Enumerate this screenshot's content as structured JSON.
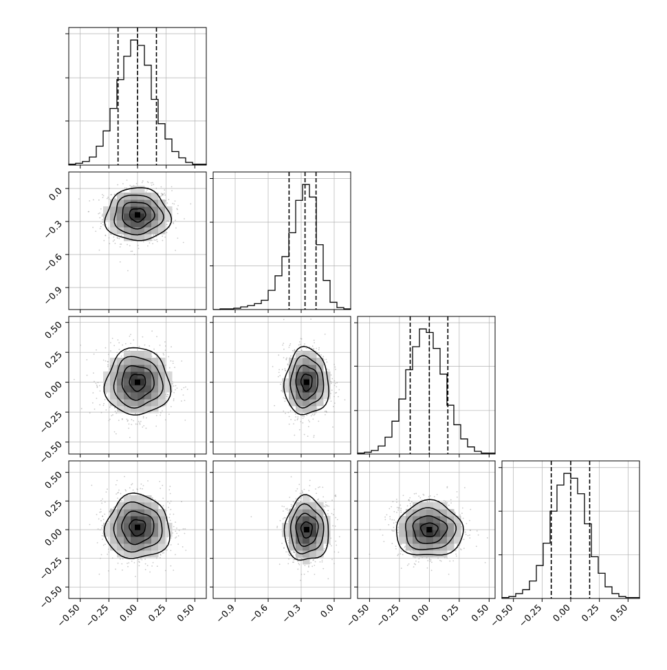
{
  "chart_data": {
    "type": "corner",
    "description": "",
    "parameters": [
      "",
      "",
      "",
      ""
    ],
    "ranges": [
      [
        -0.6,
        0.6
      ],
      [
        -1.1,
        0.15
      ],
      [
        -0.6,
        0.55
      ],
      [
        -0.6,
        0.6
      ]
    ],
    "ticks": [
      [
        -0.5,
        -0.25,
        0.0,
        0.25,
        0.5
      ],
      [
        -0.9,
        -0.6,
        -0.3,
        0.0
      ],
      [
        -0.5,
        -0.25,
        0.0,
        0.25,
        0.5
      ],
      [
        -0.5,
        -0.25,
        0.0,
        0.25,
        0.5
      ]
    ],
    "tick_labels": [
      [
        "−0.50",
        "−0.25",
        "0.00",
        "0.25",
        "0.50"
      ],
      [
        "−0.9",
        "−0.6",
        "−0.3",
        "0.0"
      ],
      [
        "−0.50",
        "−0.25",
        "0.00",
        "0.25",
        "0.50"
      ],
      [
        "−0.50",
        "−0.25",
        "0.00",
        "0.25",
        "0.50"
      ]
    ],
    "histograms": [
      {
        "param": 0,
        "bin_edges_range": [
          -0.6,
          0.6
        ],
        "n_bins": 20,
        "counts": [
          1,
          2,
          4,
          9,
          21,
          38,
          63,
          95,
          121,
          139,
          133,
          111,
          73,
          46,
          29,
          15,
          8,
          3,
          1,
          1
        ],
        "quantile_lines": [
          -0.17,
          0.0,
          0.165
        ]
      },
      {
        "param": 1,
        "bin_edges_range": [
          -1.1,
          0.15
        ],
        "n_bins": 20,
        "counts": [
          0,
          1,
          1,
          2,
          4,
          6,
          9,
          14,
          29,
          51,
          80,
          116,
          165,
          189,
          170,
          98,
          44,
          11,
          3,
          1
        ],
        "quantile_lines": [
          -0.41,
          -0.265,
          -0.165
        ]
      },
      {
        "param": 2,
        "bin_edges_range": [
          -0.6,
          0.55
        ],
        "n_bins": 20,
        "counts": [
          1,
          2,
          4,
          9,
          19,
          37,
          62,
          95,
          121,
          141,
          137,
          119,
          90,
          55,
          33,
          17,
          8,
          3,
          1,
          1
        ],
        "quantile_lines": [
          -0.16,
          0.0,
          0.155
        ]
      },
      {
        "param": 3,
        "bin_edges_range": [
          -0.6,
          0.6
        ],
        "n_bins": 20,
        "counts": [
          1,
          2,
          5,
          9,
          18,
          34,
          57,
          90,
          117,
          129,
          124,
          108,
          77,
          43,
          26,
          12,
          5,
          2,
          1,
          1
        ],
        "quantile_lines": [
          -0.17,
          0.0,
          0.165
        ]
      }
    ],
    "pairs": [
      {
        "x_param": 0,
        "y_param": 1,
        "mean": [
          0.0,
          -0.24
        ],
        "sd": [
          0.14,
          0.12
        ]
      },
      {
        "x_param": 0,
        "y_param": 2,
        "mean": [
          0.0,
          0.0
        ],
        "sd": [
          0.14,
          0.14
        ]
      },
      {
        "x_param": 1,
        "y_param": 2,
        "mean": [
          -0.25,
          0.0
        ],
        "sd": [
          0.1,
          0.14
        ]
      },
      {
        "x_param": 0,
        "y_param": 3,
        "mean": [
          0.0,
          0.02
        ],
        "sd": [
          0.14,
          0.14
        ]
      },
      {
        "x_param": 1,
        "y_param": 3,
        "mean": [
          -0.25,
          0.0
        ],
        "sd": [
          0.1,
          0.14
        ]
      },
      {
        "x_param": 2,
        "y_param": 3,
        "mean": [
          0.0,
          0.0
        ],
        "sd": [
          0.14,
          0.12
        ]
      }
    ],
    "contour_levels_sigma": [
      0.5,
      1.0,
      1.5,
      2.0
    ],
    "grid": true,
    "colors": {
      "line": "#000000",
      "grid": "#b0b0b0",
      "scatter": "#9a9a9a",
      "density_dark": "#3a3a3a",
      "density_light": "#f2f2f2"
    }
  }
}
